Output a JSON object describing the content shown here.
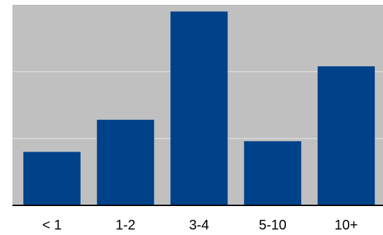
{
  "chart_data": {
    "type": "bar",
    "categories": [
      "< 1",
      "1-2",
      "3-4",
      "5-10",
      "10+"
    ],
    "values": [
      80,
      128,
      290,
      96,
      208
    ],
    "ylim": [
      0,
      300
    ],
    "grid": true,
    "plot_background": "#c0c0c0",
    "bar_color": "#004289",
    "grid_color": "#dadada",
    "axis_color": "#000000"
  }
}
